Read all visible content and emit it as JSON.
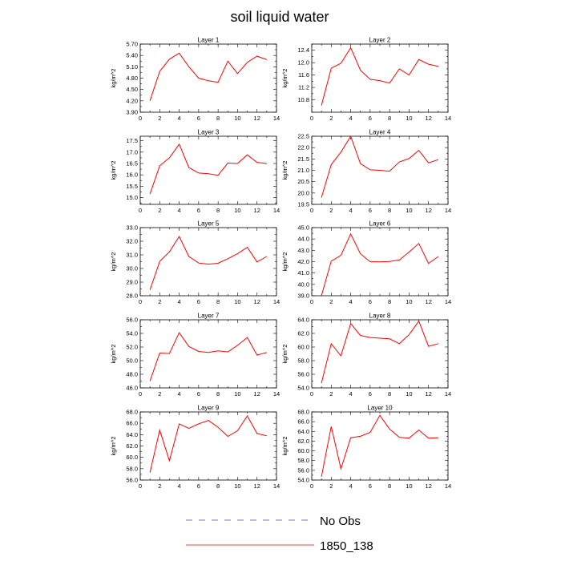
{
  "title": "soil liquid water",
  "legend": [
    {
      "label": "No Obs",
      "color": "#4a4aa0",
      "dash": "8,8"
    },
    {
      "label": "1850_138",
      "color": "#ff0000",
      "dash": ""
    }
  ],
  "chart_data": [
    {
      "type": "line",
      "title": "Layer 1",
      "ylabel": "kg/m^2",
      "xlim": [
        0,
        14
      ],
      "ylim": [
        3.9,
        5.7
      ],
      "xticks": [
        "0",
        "2",
        "4",
        "6",
        "8",
        "10",
        "12",
        "14"
      ],
      "yticks": [
        "3.90",
        "4.20",
        "4.50",
        "4.80",
        "5.10",
        "5.40",
        "5.70"
      ],
      "x": [
        1,
        2,
        3,
        4,
        5,
        6,
        7,
        8,
        9,
        10,
        11,
        12,
        13
      ],
      "series": [
        {
          "name": "1850_138",
          "values": [
            4.2,
            4.98,
            5.3,
            5.46,
            5.1,
            4.8,
            4.73,
            4.69,
            5.25,
            4.92,
            5.22,
            5.38,
            5.29
          ]
        }
      ]
    },
    {
      "type": "line",
      "title": "Layer 2",
      "ylabel": "kg/m^2",
      "xlim": [
        0,
        14
      ],
      "ylim": [
        10.4,
        12.6
      ],
      "xticks": [
        "0",
        "2",
        "4",
        "6",
        "8",
        "10",
        "12",
        "14"
      ],
      "yticks": [
        "10.8",
        "11.2",
        "11.6",
        "12.0",
        "12.4"
      ],
      "x": [
        1,
        2,
        3,
        4,
        5,
        6,
        7,
        8,
        9,
        10,
        11,
        12,
        13
      ],
      "series": [
        {
          "name": "1850_138",
          "values": [
            10.62,
            11.82,
            11.98,
            12.48,
            11.76,
            11.46,
            11.42,
            11.34,
            11.8,
            11.6,
            12.1,
            11.95,
            11.88
          ]
        }
      ]
    },
    {
      "type": "line",
      "title": "Layer 3",
      "ylabel": "kg/m^2",
      "xlim": [
        0,
        14
      ],
      "ylim": [
        14.7,
        17.7
      ],
      "xticks": [
        "0",
        "2",
        "4",
        "6",
        "8",
        "10",
        "12",
        "14"
      ],
      "yticks": [
        "15.0",
        "15.5",
        "16.0",
        "16.5",
        "17.0",
        "17.5"
      ],
      "x": [
        1,
        2,
        3,
        4,
        5,
        6,
        7,
        8,
        9,
        10,
        11,
        12,
        13
      ],
      "series": [
        {
          "name": "1850_138",
          "values": [
            15.15,
            16.4,
            16.75,
            17.35,
            16.32,
            16.08,
            16.05,
            15.98,
            16.52,
            16.5,
            16.88,
            16.55,
            16.5
          ]
        }
      ]
    },
    {
      "type": "line",
      "title": "Layer 4",
      "ylabel": "kg/m^2",
      "xlim": [
        0,
        14
      ],
      "ylim": [
        19.5,
        22.5
      ],
      "xticks": [
        "0",
        "2",
        "4",
        "6",
        "8",
        "10",
        "12",
        "14"
      ],
      "yticks": [
        "19.5",
        "20.0",
        "20.5",
        "21.0",
        "21.5",
        "22.0",
        "22.5"
      ],
      "x": [
        1,
        2,
        3,
        4,
        5,
        6,
        7,
        8,
        9,
        10,
        11,
        12,
        13
      ],
      "series": [
        {
          "name": "1850_138",
          "values": [
            19.8,
            21.25,
            21.8,
            22.5,
            21.3,
            21.02,
            21.0,
            20.96,
            21.37,
            21.52,
            21.88,
            21.33,
            21.47
          ]
        }
      ]
    },
    {
      "type": "line",
      "title": "Layer 5",
      "ylabel": "kg/m^2",
      "xlim": [
        0,
        14
      ],
      "ylim": [
        28.0,
        33.0
      ],
      "xticks": [
        "0",
        "2",
        "4",
        "6",
        "8",
        "10",
        "12",
        "14"
      ],
      "yticks": [
        "28.0",
        "29.0",
        "30.0",
        "31.0",
        "32.0",
        "33.0"
      ],
      "x": [
        1,
        2,
        3,
        4,
        5,
        6,
        7,
        8,
        9,
        10,
        11,
        12,
        13
      ],
      "series": [
        {
          "name": "1850_138",
          "values": [
            28.42,
            30.52,
            31.22,
            32.35,
            30.88,
            30.4,
            30.32,
            30.38,
            30.72,
            31.08,
            31.55,
            30.48,
            30.88
          ]
        }
      ]
    },
    {
      "type": "line",
      "title": "Layer 6",
      "ylabel": "kg/m^2",
      "xlim": [
        0,
        14
      ],
      "ylim": [
        39.0,
        45.0
      ],
      "xticks": [
        "0",
        "2",
        "4",
        "6",
        "8",
        "10",
        "12",
        "14"
      ],
      "yticks": [
        "39.0",
        "40.0",
        "41.0",
        "42.0",
        "43.0",
        "44.0",
        "45.0"
      ],
      "x": [
        1,
        2,
        3,
        4,
        5,
        6,
        7,
        8,
        9,
        10,
        11,
        12,
        13
      ],
      "series": [
        {
          "name": "1850_138",
          "values": [
            39.0,
            42.05,
            42.55,
            44.45,
            42.7,
            42.0,
            41.98,
            42.02,
            42.15,
            42.85,
            43.6,
            41.85,
            42.45
          ]
        }
      ]
    },
    {
      "type": "line",
      "title": "Layer 7",
      "ylabel": "kg/m^2",
      "xlim": [
        0,
        14
      ],
      "ylim": [
        46.0,
        56.0
      ],
      "xticks": [
        "0",
        "2",
        "4",
        "6",
        "8",
        "10",
        "12",
        "14"
      ],
      "yticks": [
        "46.0",
        "48.0",
        "50.0",
        "52.0",
        "54.0",
        "56.0"
      ],
      "x": [
        1,
        2,
        3,
        4,
        5,
        6,
        7,
        8,
        9,
        10,
        11,
        12,
        13
      ],
      "series": [
        {
          "name": "1850_138",
          "values": [
            47.0,
            51.12,
            51.05,
            54.1,
            52.08,
            51.35,
            51.2,
            51.45,
            51.28,
            52.25,
            53.4,
            50.82,
            51.2
          ]
        }
      ]
    },
    {
      "type": "line",
      "title": "Layer 8",
      "ylabel": "kg/m^2",
      "xlim": [
        0,
        14
      ],
      "ylim": [
        54.0,
        64.0
      ],
      "xticks": [
        "0",
        "2",
        "4",
        "6",
        "8",
        "10",
        "12",
        "14"
      ],
      "yticks": [
        "54.0",
        "56.0",
        "58.0",
        "60.0",
        "62.0",
        "64.0"
      ],
      "x": [
        1,
        2,
        3,
        4,
        5,
        6,
        7,
        8,
        9,
        10,
        11,
        12,
        13
      ],
      "series": [
        {
          "name": "1850_138",
          "values": [
            54.7,
            60.5,
            58.7,
            63.45,
            61.7,
            61.4,
            61.3,
            61.2,
            60.5,
            61.8,
            63.8,
            60.1,
            60.5
          ]
        }
      ]
    },
    {
      "type": "line",
      "title": "Layer 9",
      "ylabel": "kg/m^2",
      "xlim": [
        0,
        14
      ],
      "ylim": [
        56.0,
        68.0
      ],
      "xticks": [
        "0",
        "2",
        "4",
        "6",
        "8",
        "10",
        "12",
        "14"
      ],
      "yticks": [
        "56.0",
        "58.0",
        "60.0",
        "62.0",
        "64.0",
        "66.0",
        "68.0"
      ],
      "x": [
        1,
        2,
        3,
        4,
        5,
        6,
        7,
        8,
        9,
        10,
        11,
        12,
        13
      ],
      "series": [
        {
          "name": "1850_138",
          "values": [
            57.3,
            64.8,
            59.4,
            65.9,
            65.1,
            65.9,
            66.5,
            65.3,
            63.7,
            64.7,
            67.3,
            64.2,
            63.8
          ]
        }
      ]
    },
    {
      "type": "line",
      "title": "Layer 10",
      "ylabel": "kg/m^2",
      "xlim": [
        0,
        14
      ],
      "ylim": [
        54.0,
        68.0
      ],
      "xticks": [
        "0",
        "2",
        "4",
        "6",
        "8",
        "10",
        "12",
        "14"
      ],
      "yticks": [
        "54.0",
        "56.0",
        "58.0",
        "60.0",
        "62.0",
        "64.0",
        "66.0",
        "68.0"
      ],
      "x": [
        1,
        2,
        3,
        4,
        5,
        6,
        7,
        8,
        9,
        10,
        11,
        12,
        13
      ],
      "series": [
        {
          "name": "1850_138",
          "values": [
            54.7,
            65.0,
            56.3,
            62.7,
            63.0,
            63.8,
            67.3,
            64.5,
            62.8,
            62.6,
            64.3,
            62.6,
            62.7
          ]
        }
      ]
    }
  ]
}
